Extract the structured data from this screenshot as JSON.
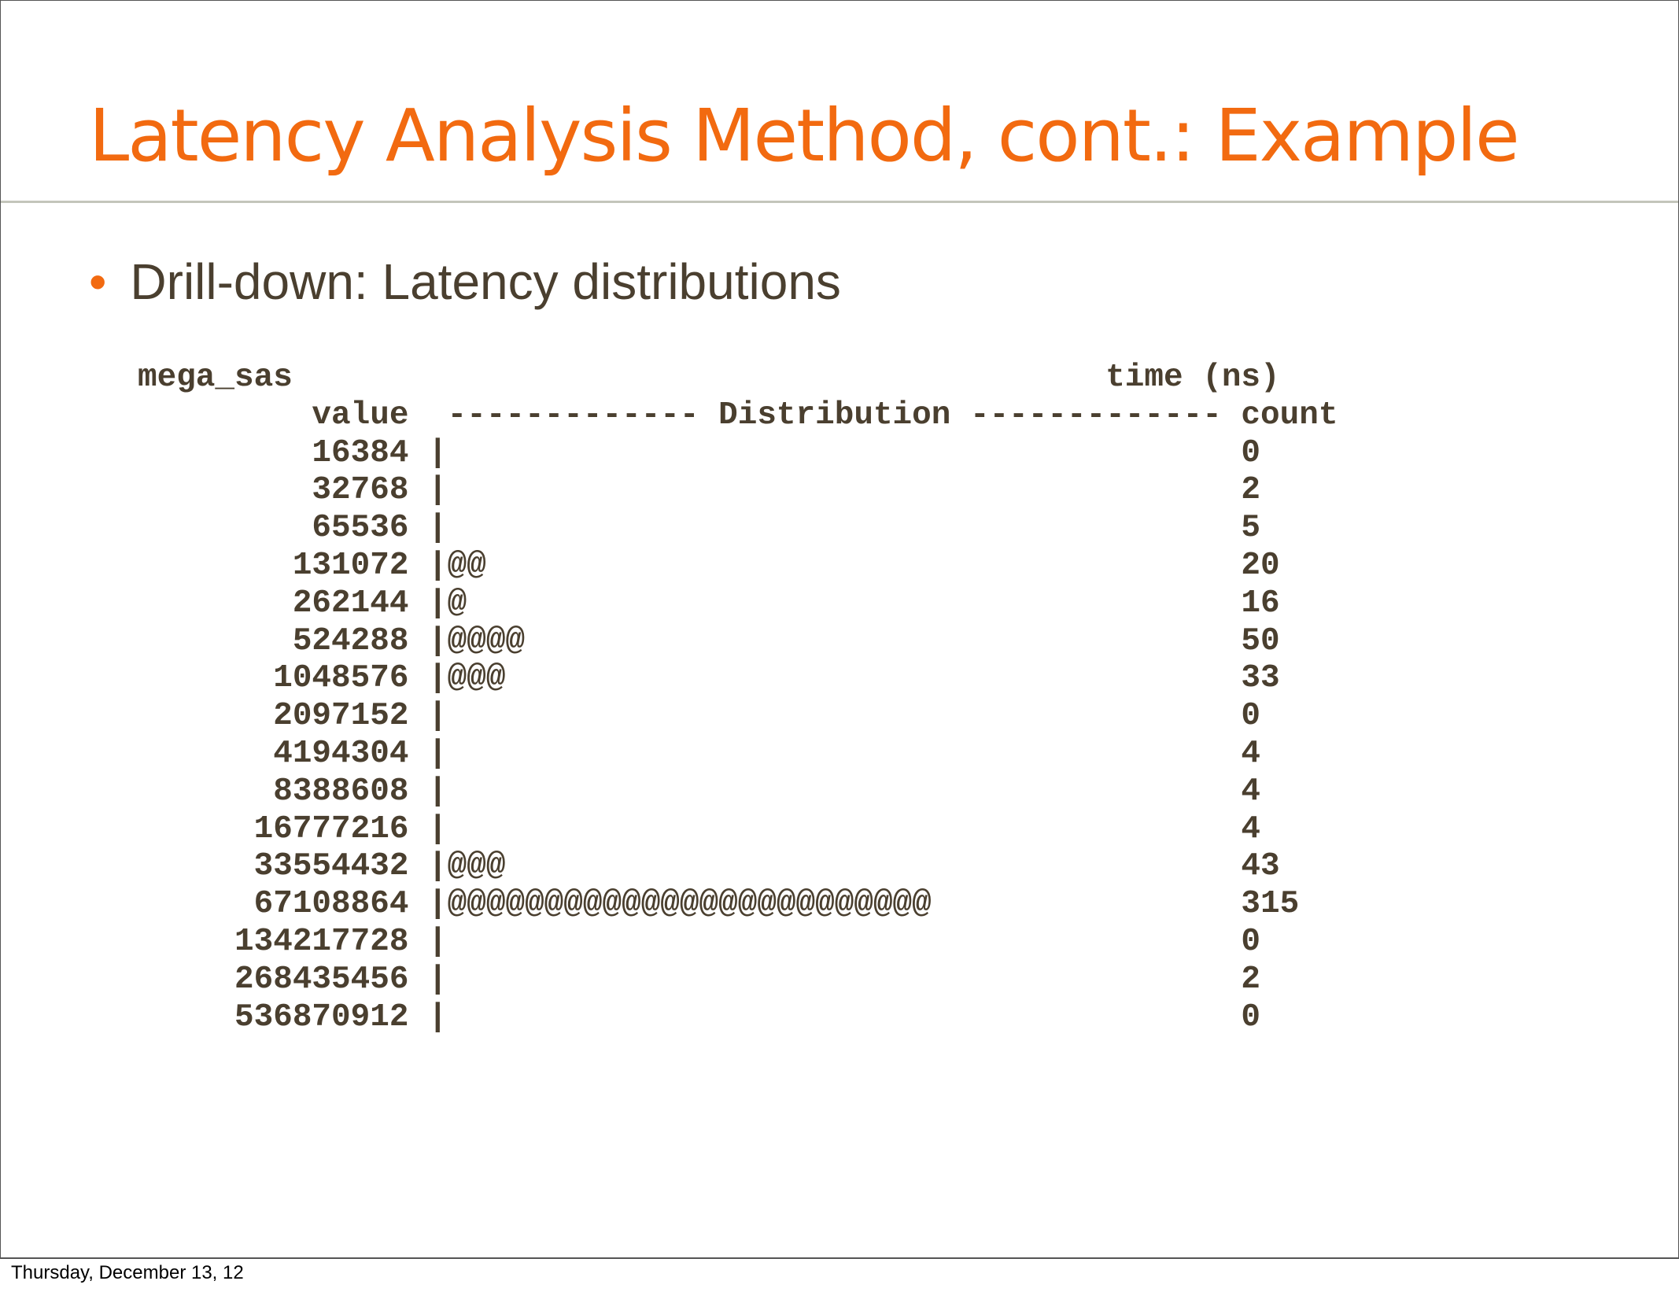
{
  "slide": {
    "title": "Latency Analysis Method, cont.: Example",
    "bullet": "Drill-down: Latency distributions",
    "bullet_icon": "orange-dot",
    "colors": {
      "title": "#f26a10",
      "text": "#4a3f2f",
      "rule": "#c3c5bb"
    },
    "output_lines": [
      "mega_sas                                          time (ns)",
      "         value  ------------- Distribution ------------- count",
      "         16384 |                                         0",
      "         32768 |                                         2",
      "         65536 |                                         5",
      "        131072 |@@                                       20",
      "        262144 |@                                        16",
      "        524288 |@@@@                                     50",
      "       1048576 |@@@                                      33",
      "       2097152 |                                         0",
      "       4194304 |                                         4",
      "       8388608 |                                         4",
      "      16777216 |                                         4",
      "      33554432 |@@@                                      43",
      "      67108864 |@@@@@@@@@@@@@@@@@@@@@@@@@                315",
      "     134217728 |                                         0",
      "     268435456 |                                         2",
      "     536870912 |                                         0"
    ]
  },
  "footer": {
    "date": "Thursday, December 13, 12"
  }
}
